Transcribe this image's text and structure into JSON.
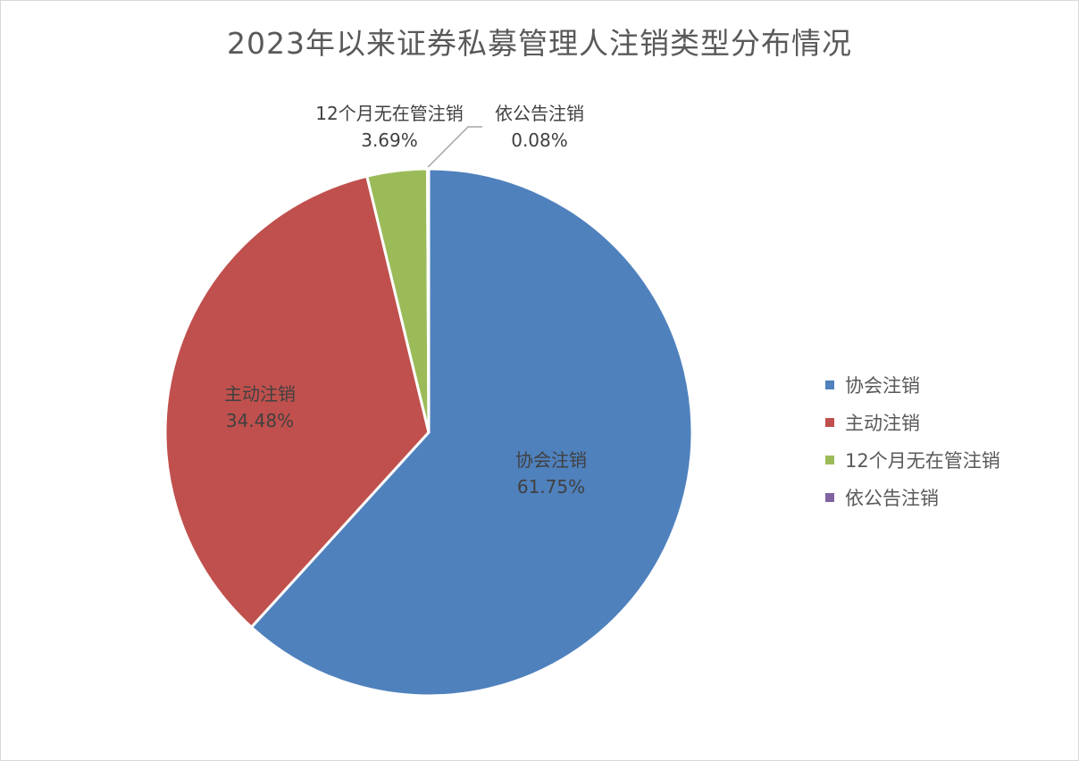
{
  "chart_data": {
    "type": "pie",
    "title": "2023年以来证券私募管理人注销类型分布情况",
    "categories": [
      "协会注销",
      "主动注销",
      "12个月无在管注销",
      "依公告注销"
    ],
    "values": [
      61.75,
      34.48,
      3.69,
      0.08
    ],
    "value_labels": [
      "61.75%",
      "34.48%",
      "3.69%",
      "0.08%"
    ],
    "colors": [
      "#4f81bd",
      "#c0504d",
      "#9bbb59",
      "#8064a2"
    ],
    "legend_position": "right"
  }
}
